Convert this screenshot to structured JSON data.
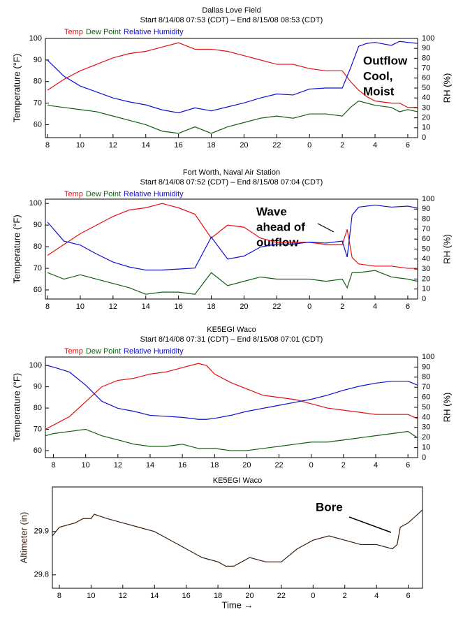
{
  "chart_data": [
    {
      "type": "line",
      "title": "Dallas Love Field",
      "subtitle": "Start 8/14/08 07:53 (CDT) – End 8/15/08 08:53 (CDT)",
      "ylabel": "Temperature (°F)",
      "y2label": "RH (%)",
      "annotations": [
        "Outflow",
        "Cool,",
        "Moist"
      ],
      "x": [
        8,
        9,
        10,
        11,
        12,
        13,
        14,
        15,
        16,
        17,
        18,
        19,
        20,
        21,
        22,
        23,
        24,
        25,
        26,
        26.5,
        27,
        27.5,
        28,
        29,
        29.5,
        30,
        30.6
      ],
      "xlim": [
        7.87,
        30.6
      ],
      "xticks": [
        8,
        10,
        12,
        14,
        16,
        18,
        20,
        22,
        {
          "value": 24,
          "label": "0"
        },
        {
          "value": 26,
          "label": "2"
        },
        {
          "value": 28,
          "label": "4"
        },
        {
          "value": 30,
          "label": "6"
        }
      ],
      "ylim": [
        54,
        100
      ],
      "yticks": [
        60,
        70,
        80,
        90,
        100
      ],
      "y2lim": [
        0,
        100
      ],
      "y2ticks": [
        0,
        10,
        20,
        30,
        40,
        50,
        60,
        70,
        80,
        90,
        100
      ],
      "series": [
        {
          "name": "Temp",
          "color": "#e01010",
          "values": [
            76,
            81,
            85,
            88,
            91,
            93,
            94,
            96,
            98,
            95,
            95,
            94,
            92,
            90,
            88,
            88,
            86,
            85,
            85,
            80,
            76,
            73,
            71,
            70,
            70,
            68,
            68
          ]
        },
        {
          "name": "Dew Point",
          "color": "#106010",
          "values": [
            69,
            68,
            67,
            66,
            64,
            62,
            60,
            57,
            56,
            59,
            56,
            59,
            61,
            63,
            64,
            63,
            65,
            65,
            64,
            68,
            71,
            70,
            69,
            68,
            66,
            67,
            66
          ]
        },
        {
          "name": "Relative Humidity",
          "color": "#1010d0",
          "axis": "y2",
          "values": [
            78,
            62,
            52,
            46,
            40,
            36,
            33,
            28,
            25,
            30,
            27,
            31,
            35,
            40,
            44,
            43,
            49,
            50,
            50,
            70,
            92,
            95,
            96,
            93,
            97,
            96,
            95
          ]
        }
      ]
    },
    {
      "type": "line",
      "title": "Fort Worth, Naval Air Station",
      "subtitle": "Start 8/14/08 07:52 (CDT) – End 8/15/08 07:04 (CDT)",
      "ylabel": "Temperature (°F)",
      "y2label": "RH (%)",
      "annotations": [
        "Wave",
        "ahead of",
        "outflow"
      ],
      "x": [
        8,
        9,
        10,
        11,
        12,
        13,
        14,
        15,
        16,
        17,
        18,
        19,
        20,
        21,
        22,
        23,
        24,
        25,
        26,
        26.3,
        26.6,
        27,
        28,
        29,
        30,
        30.6
      ],
      "xlim": [
        7.87,
        30.6
      ],
      "xticks": [
        8,
        10,
        12,
        14,
        16,
        18,
        20,
        22,
        {
          "value": 24,
          "label": "0"
        },
        {
          "value": 26,
          "label": "2"
        },
        {
          "value": 28,
          "label": "4"
        },
        {
          "value": 30,
          "label": "6"
        }
      ],
      "ylim": [
        55.8,
        102
      ],
      "yticks": [
        60,
        70,
        80,
        90,
        100
      ],
      "y2lim": [
        0,
        100
      ],
      "y2ticks": [
        0,
        10,
        20,
        30,
        40,
        50,
        60,
        70,
        80,
        90,
        100
      ],
      "series": [
        {
          "name": "Temp",
          "color": "#e01010",
          "values": [
            76,
            81,
            86,
            90,
            94,
            97,
            98,
            100,
            98,
            95,
            84,
            90,
            89,
            84,
            82,
            82,
            82,
            81,
            81,
            88,
            75,
            72,
            71,
            71,
            70,
            70
          ]
        },
        {
          "name": "Dew Point",
          "color": "#106010",
          "values": [
            68,
            65,
            67,
            65,
            63,
            61,
            58,
            59,
            59,
            58,
            68,
            62,
            64,
            66,
            65,
            65,
            65,
            64,
            65,
            61,
            68,
            68,
            69,
            66,
            65,
            64
          ]
        },
        {
          "name": "Relative Humidity",
          "color": "#1010d0",
          "axis": "y2",
          "values": [
            77,
            58,
            54,
            45,
            37,
            32,
            29,
            29,
            30,
            31,
            62,
            40,
            43,
            52,
            55,
            55,
            57,
            56,
            58,
            42,
            84,
            92,
            94,
            92,
            93,
            91
          ]
        }
      ]
    },
    {
      "type": "line",
      "title": "KE5EGI Waco",
      "subtitle": "Start 8/14/08 07:31 (CDT) – End 8/15/08 07:01 (CDT)",
      "ylabel": "Temperature (°F)",
      "y2label": "RH (%)",
      "x": [
        7.5,
        8,
        9,
        10,
        11,
        12,
        13,
        14,
        15,
        16,
        17,
        17.5,
        18,
        19,
        20,
        21,
        22,
        23,
        24,
        25,
        26,
        27,
        28,
        29,
        30,
        30.6
      ],
      "xlim": [
        7.5,
        30.6
      ],
      "xticks": [
        8,
        10,
        12,
        14,
        16,
        18,
        20,
        22,
        {
          "value": 24,
          "label": "0"
        },
        {
          "value": 26,
          "label": "2"
        },
        {
          "value": 28,
          "label": "4"
        },
        {
          "value": 30,
          "label": "6"
        }
      ],
      "ylim": [
        56.7,
        104
      ],
      "yticks": [
        60,
        70,
        80,
        90,
        100
      ],
      "y2lim": [
        0,
        100
      ],
      "y2ticks": [
        0,
        10,
        20,
        30,
        40,
        50,
        60,
        70,
        80,
        90,
        100
      ],
      "series": [
        {
          "name": "Temp",
          "color": "#e01010",
          "values": [
            70,
            72,
            76,
            83,
            90,
            93,
            94,
            96,
            97,
            99,
            101,
            100,
            96,
            92,
            89,
            86,
            85,
            84,
            82,
            80,
            79,
            78,
            77,
            77,
            77,
            75
          ]
        },
        {
          "name": "Dew Point",
          "color": "#106010",
          "values": [
            67,
            68,
            69,
            70,
            67,
            65,
            63,
            62,
            62,
            63,
            61,
            61,
            61,
            60,
            60,
            61,
            62,
            63,
            64,
            64,
            65,
            66,
            67,
            68,
            69,
            66
          ]
        },
        {
          "name": "Relative Humidity",
          "color": "#1010d0",
          "axis": "y2",
          "values": [
            92,
            90,
            85,
            72,
            56,
            49,
            46,
            42,
            41,
            40,
            38,
            38,
            39,
            42,
            46,
            49,
            52,
            55,
            58,
            62,
            67,
            71,
            74,
            76,
            76,
            72
          ]
        }
      ]
    },
    {
      "type": "line",
      "title": "KE5EGI Waco",
      "ylabel": "Altimeter (in)",
      "xlabel": "Time →",
      "annotations": [
        "Bore"
      ],
      "x": [
        7.56,
        8,
        9,
        9.5,
        10,
        10.2,
        11,
        12,
        13,
        14,
        15,
        16,
        17,
        18,
        18.5,
        19,
        20,
        21,
        22,
        23,
        24,
        25,
        26,
        27,
        28,
        29,
        29.3,
        29.5,
        30,
        30.9
      ],
      "xlim": [
        7.56,
        30.9
      ],
      "xticks": [
        8,
        10,
        12,
        14,
        16,
        18,
        20,
        22,
        {
          "value": 24,
          "label": "0"
        },
        {
          "value": 26,
          "label": "2"
        },
        {
          "value": 28,
          "label": "4"
        },
        {
          "value": 30,
          "label": "6"
        }
      ],
      "ylim": [
        29.769,
        30.003
      ],
      "yticks": [
        29.8,
        29.9
      ],
      "color": "#3a1e0c",
      "values": [
        29.89,
        29.91,
        29.92,
        29.93,
        29.93,
        29.94,
        29.93,
        29.92,
        29.91,
        29.9,
        29.88,
        29.86,
        29.84,
        29.83,
        29.82,
        29.82,
        29.84,
        29.83,
        29.83,
        29.86,
        29.88,
        29.89,
        29.88,
        29.87,
        29.87,
        29.86,
        29.87,
        29.91,
        29.92,
        29.95
      ]
    }
  ]
}
